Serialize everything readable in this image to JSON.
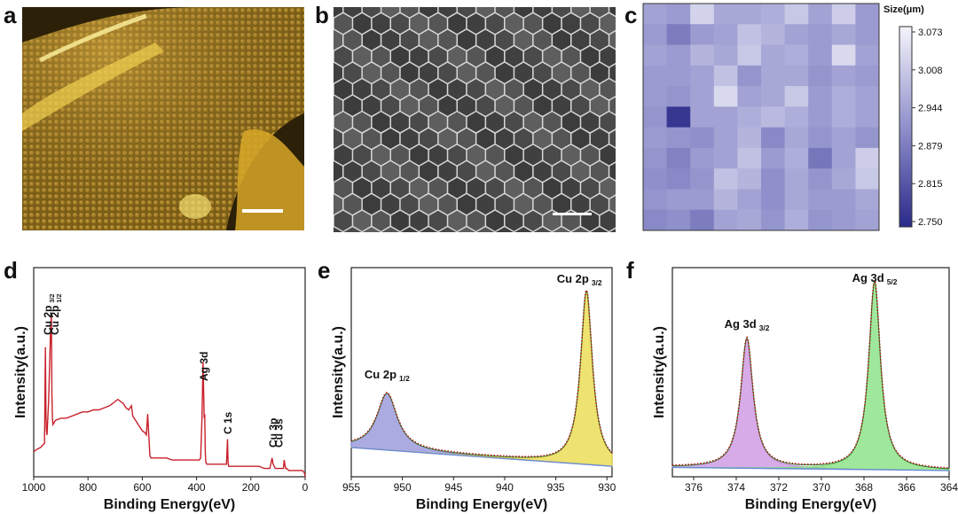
{
  "panels": {
    "a": {
      "letter": "a"
    },
    "b": {
      "letter": "b"
    },
    "c": {
      "letter": "c"
    },
    "d": {
      "letter": "d"
    },
    "e": {
      "letter": "e"
    },
    "f": {
      "letter": "f"
    }
  },
  "colors": {
    "survey_line": "#c8202a",
    "cu_half_fill": "#8f8fd8",
    "cu_three_half_fill": "#e8d840",
    "ag_five_half_fill": "#7fe07a",
    "ag_three_half_fill": "#c98ee0",
    "fit_envelope": "#2a7a2a",
    "raw_dots": "#b01a1a",
    "heatmap_low": "#2a2a8a",
    "heatmap_high": "#f4f4fb"
  },
  "chart_data": [
    {
      "panel": "c",
      "type": "heatmap",
      "legend_title": "Size(μm)",
      "colorbar_ticks": [
        "3.073",
        "3.008",
        "2.944",
        "2.879",
        "2.815",
        "2.750"
      ],
      "value_range": [
        2.75,
        3.073
      ],
      "values": [
        [
          2.94,
          2.93,
          3.02,
          2.95,
          2.95,
          2.96,
          3.0,
          2.94,
          3.01,
          2.93
        ],
        [
          2.93,
          2.88,
          2.93,
          2.94,
          2.99,
          2.97,
          2.94,
          2.93,
          2.95,
          2.93
        ],
        [
          2.94,
          2.93,
          2.97,
          2.95,
          3.0,
          2.95,
          2.96,
          2.93,
          3.03,
          2.94
        ],
        [
          2.93,
          2.93,
          2.94,
          2.99,
          2.92,
          2.95,
          2.95,
          2.92,
          2.94,
          2.93
        ],
        [
          2.93,
          2.92,
          2.94,
          3.03,
          2.94,
          2.95,
          3.0,
          2.93,
          2.96,
          2.94
        ],
        [
          2.92,
          2.77,
          2.94,
          2.94,
          2.96,
          2.98,
          2.96,
          2.93,
          2.96,
          2.94
        ],
        [
          2.93,
          2.92,
          2.91,
          2.94,
          2.97,
          2.9,
          2.95,
          2.92,
          2.94,
          2.92
        ],
        [
          2.92,
          2.89,
          2.93,
          2.94,
          2.99,
          2.93,
          2.96,
          2.87,
          2.94,
          3.01
        ],
        [
          2.91,
          2.9,
          2.92,
          2.99,
          2.97,
          2.91,
          2.95,
          2.92,
          2.95,
          3.0
        ],
        [
          2.92,
          2.93,
          2.93,
          2.97,
          2.94,
          2.91,
          2.95,
          2.93,
          2.93,
          2.95
        ],
        [
          2.9,
          2.91,
          2.88,
          2.94,
          2.95,
          2.92,
          2.96,
          2.92,
          2.93,
          2.94
        ]
      ]
    },
    {
      "panel": "d",
      "type": "line",
      "xlabel": "Binding Energy(eV)",
      "ylabel": "Intensity(a.u.)",
      "xlim": [
        1000,
        0
      ],
      "ylim": [
        0,
        1
      ],
      "xticks": [
        "1000",
        "800",
        "600",
        "400",
        "200",
        "0"
      ],
      "x": [
        1000,
        990,
        975,
        960,
        957,
        955,
        953,
        951,
        945,
        938,
        935,
        933,
        931,
        929,
        920,
        900,
        880,
        860,
        840,
        820,
        800,
        780,
        760,
        740,
        720,
        700,
        690,
        680,
        670,
        660,
        650,
        640,
        635,
        630,
        620,
        610,
        600,
        590,
        585,
        580,
        576,
        572,
        568,
        565,
        560,
        550,
        530,
        510,
        490,
        470,
        450,
        430,
        410,
        400,
        390,
        385,
        380,
        376,
        372,
        370,
        368,
        366,
        362,
        355,
        345,
        335,
        320,
        305,
        295,
        290,
        286,
        284,
        282,
        278,
        270,
        250,
        230,
        210,
        190,
        170,
        150,
        130,
        125,
        122,
        118,
        110,
        95,
        80,
        77,
        75,
        72,
        68,
        60,
        40,
        20,
        10,
        3,
        0
      ],
      "y": [
        0.12,
        0.13,
        0.14,
        0.16,
        0.62,
        0.3,
        0.22,
        0.2,
        0.36,
        0.7,
        0.78,
        0.4,
        0.28,
        0.25,
        0.27,
        0.28,
        0.28,
        0.29,
        0.3,
        0.31,
        0.31,
        0.32,
        0.32,
        0.33,
        0.34,
        0.36,
        0.37,
        0.36,
        0.35,
        0.33,
        0.32,
        0.34,
        0.29,
        0.28,
        0.26,
        0.24,
        0.22,
        0.21,
        0.2,
        0.3,
        0.2,
        0.1,
        0.09,
        0.09,
        0.09,
        0.09,
        0.09,
        0.09,
        0.08,
        0.08,
        0.08,
        0.08,
        0.08,
        0.08,
        0.08,
        0.09,
        0.28,
        0.55,
        0.28,
        0.3,
        0.12,
        0.07,
        0.06,
        0.06,
        0.06,
        0.06,
        0.06,
        0.06,
        0.06,
        0.06,
        0.18,
        0.07,
        0.05,
        0.05,
        0.05,
        0.05,
        0.05,
        0.05,
        0.05,
        0.05,
        0.04,
        0.04,
        0.07,
        0.09,
        0.06,
        0.04,
        0.04,
        0.04,
        0.08,
        0.06,
        0.04,
        0.04,
        0.03,
        0.03,
        0.03,
        0.03,
        0.02,
        0.0
      ],
      "annotations": [
        {
          "text": "Cu 2p",
          "sub": "3/2",
          "x": 948
        },
        {
          "text": "Cu 2p",
          "sub": "1/2",
          "x": 922
        },
        {
          "text": "Ag 3d",
          "sub": "",
          "x": 372
        },
        {
          "text": "C 1s",
          "sub": "",
          "x": 285
        },
        {
          "text": "Cu 3p",
          "sub": "",
          "x": 118
        },
        {
          "text": "Cu 3s",
          "sub": "",
          "x": 97
        }
      ]
    },
    {
      "panel": "e",
      "type": "line",
      "xlabel": "Binding Energy(eV)",
      "ylabel": "Intensity(a.u.)",
      "xlim": [
        955,
        929.5
      ],
      "ylim": [
        0,
        1
      ],
      "xticks": [
        "955",
        "950",
        "945",
        "940",
        "935",
        "930"
      ],
      "series": [
        {
          "name": "Cu 2p 1/2",
          "center": 951.5,
          "height": 0.27,
          "width": 1.2
        },
        {
          "name": "Cu 2p 3/2",
          "center": 932.0,
          "height": 0.83,
          "width": 0.7
        }
      ],
      "baseline": {
        "x": [
          955,
          929.5
        ],
        "y": [
          0.14,
          0.05
        ]
      },
      "annotations": [
        {
          "text": "Cu 2p",
          "sub": "1/2",
          "x": 951.5
        },
        {
          "text": "Cu 2p",
          "sub": "3/2",
          "x": 932.0
        }
      ]
    },
    {
      "panel": "f",
      "type": "line",
      "xlabel": "Binding Energy(eV)",
      "ylabel": "Intensity(a.u.)",
      "xlim": [
        377,
        364
      ],
      "ylim": [
        0,
        1
      ],
      "xticks": [
        "376",
        "374",
        "372",
        "370",
        "368",
        "366",
        "364"
      ],
      "series": [
        {
          "name": "Ag 3d 3/2",
          "center": 373.5,
          "height": 0.62,
          "width": 0.35
        },
        {
          "name": "Ag 3d 5/2",
          "center": 367.5,
          "height": 0.9,
          "width": 0.33
        }
      ],
      "baseline": {
        "x": [
          377,
          364
        ],
        "y": [
          0.045,
          0.03
        ]
      },
      "annotations": [
        {
          "text": "Ag 3d",
          "sub": "3/2",
          "x": 373.5
        },
        {
          "text": "Ag 3d",
          "sub": "5/2",
          "x": 367.5
        }
      ]
    }
  ]
}
